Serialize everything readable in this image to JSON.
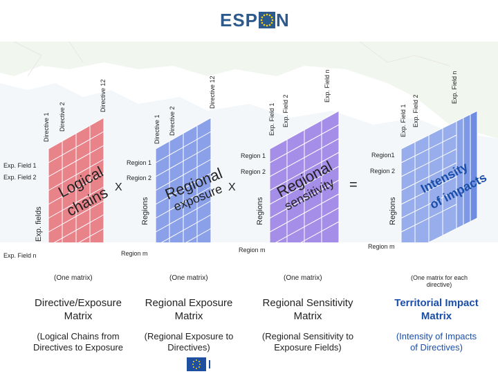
{
  "logo": {
    "text_left": "ESP",
    "text_right": "N"
  },
  "matrix1": {
    "col_labels": [
      "Directive 1",
      "Directive 2",
      "Directive 12"
    ],
    "row_labels": [
      "Exp. Field 1",
      "Exp. Field 2",
      "Exp. Field n"
    ],
    "axis_label": "Exp. fields",
    "inner_line1": "Logical",
    "inner_line2": "chains",
    "caption": "(One matrix)",
    "title": "Directive/Exposure Matrix",
    "subtitle": "(Logical Chains from Directives to Exposure Fields)"
  },
  "op1": "X",
  "matrix2": {
    "col_labels": [
      "Directive 1",
      "Directive 2",
      "Directive 12"
    ],
    "row_labels": [
      "Region 1",
      "Region 2",
      "Region m"
    ],
    "axis_label": "Regions",
    "inner_line1": "Regional",
    "inner_line2": "exposure",
    "caption": "(One matrix)",
    "title": "Regional Exposure Matrix",
    "subtitle": "(Regional Exposure to Directives)"
  },
  "op2": "X",
  "matrix3": {
    "col_labels": [
      "Exp. Field 1",
      "Exp. Field 2",
      "Exp. Field n"
    ],
    "row_labels": [
      "Region 1",
      "Region 2",
      "Region m"
    ],
    "axis_label": "Regions",
    "inner_line1": "Regional",
    "inner_line2": "sensitivity",
    "caption": "(One matrix)",
    "title": "Regional Sensitivity Matrix",
    "subtitle": "(Regional Sensitivity to Exposure Fields)"
  },
  "op3": "=",
  "matrix4": {
    "col_labels": [
      "Exp. Field 1",
      "Exp. Field 2",
      "Exp. Field n"
    ],
    "row_labels": [
      "Region1",
      "Region 2",
      "Region m"
    ],
    "axis_label": "Regions",
    "inner_line1": "Intensity",
    "inner_line2": "of impacts",
    "caption": "(One matrix for each directive)",
    "title": "Territorial Impact Matrix",
    "subtitle": "(Intensity of Impacts of Directives)"
  },
  "colors": {
    "red": "#e8838a",
    "blue": "#8aa0e8",
    "purple": "#a48ee8",
    "title_blue": "#1a4ea8"
  }
}
